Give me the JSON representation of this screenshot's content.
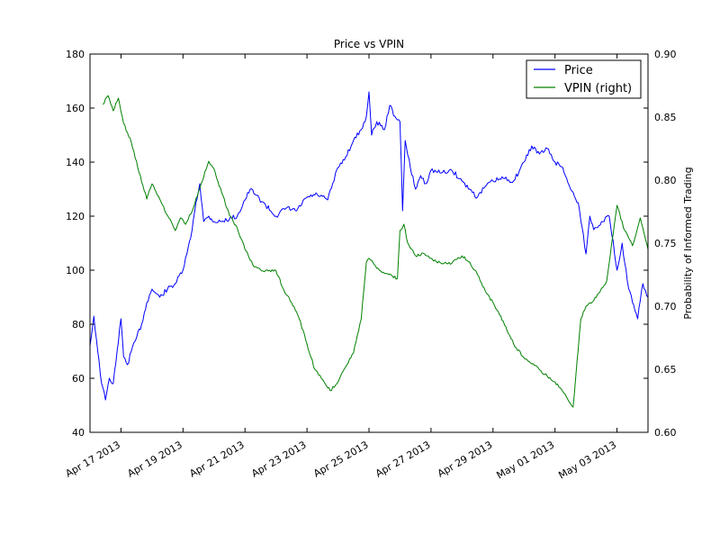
{
  "chart_data": {
    "type": "line",
    "title": "Price vs VPIN",
    "xlabel": "",
    "ylabel": "",
    "ylabel_right": "Probability of Informed Trading",
    "x_ticks": [
      "Apr 17 2013",
      "Apr 19 2013",
      "Apr 21 2013",
      "Apr 23 2013",
      "Apr 25 2013",
      "Apr 27 2013",
      "Apr 29 2013",
      "May 01 2013",
      "May 03 2013"
    ],
    "x_range": [
      "2013-04-16",
      "2013-05-04"
    ],
    "ylim_left": [
      40,
      180
    ],
    "yticks_left": [
      "40",
      "60",
      "80",
      "100",
      "120",
      "140",
      "160",
      "180"
    ],
    "ylim_right": [
      0.6,
      0.9
    ],
    "yticks_right": [
      "0.60",
      "0.65",
      "0.70",
      "0.75",
      "0.80",
      "0.85",
      "0.90"
    ],
    "grid": false,
    "legend_position": "top-right",
    "series": [
      {
        "name": "Price",
        "axis": "left",
        "color": "#0000ff",
        "points": [
          [
            "2013-04-16T00:00",
            72
          ],
          [
            "2013-04-16T03:00",
            83
          ],
          [
            "2013-04-16T06:00",
            70
          ],
          [
            "2013-04-16T09:00",
            58
          ],
          [
            "2013-04-16T12:00",
            52
          ],
          [
            "2013-04-16T15:00",
            60
          ],
          [
            "2013-04-16T18:00",
            58
          ],
          [
            "2013-04-16T21:00",
            70
          ],
          [
            "2013-04-17T00:00",
            82
          ],
          [
            "2013-04-17T02:00",
            68
          ],
          [
            "2013-04-17T05:00",
            65
          ],
          [
            "2013-04-17T08:00",
            70
          ],
          [
            "2013-04-17T12:00",
            75
          ],
          [
            "2013-04-17T16:00",
            80
          ],
          [
            "2013-04-17T20:00",
            88
          ],
          [
            "2013-04-18T00:00",
            93
          ],
          [
            "2013-04-18T06:00",
            90
          ],
          [
            "2013-04-18T12:00",
            93
          ],
          [
            "2013-04-18T18:00",
            95
          ],
          [
            "2013-04-19T00:00",
            100
          ],
          [
            "2013-04-19T06:00",
            112
          ],
          [
            "2013-04-19T10:00",
            125
          ],
          [
            "2013-04-19T13:00",
            132
          ],
          [
            "2013-04-19T16:00",
            118
          ],
          [
            "2013-04-19T20:00",
            120
          ],
          [
            "2013-04-20T00:00",
            118
          ],
          [
            "2013-04-20T06:00",
            118
          ],
          [
            "2013-04-20T12:00",
            119
          ],
          [
            "2013-04-20T18:00",
            120
          ],
          [
            "2013-04-21T00:00",
            126
          ],
          [
            "2013-04-21T04:00",
            130
          ],
          [
            "2013-04-21T08:00",
            128
          ],
          [
            "2013-04-21T16:00",
            124
          ],
          [
            "2013-04-22T00:00",
            120
          ],
          [
            "2013-04-22T08:00",
            123
          ],
          [
            "2013-04-22T16:00",
            122
          ],
          [
            "2013-04-23T00:00",
            127
          ],
          [
            "2013-04-23T08:00",
            128
          ],
          [
            "2013-04-23T16:00",
            126
          ],
          [
            "2013-04-24T00:00",
            138
          ],
          [
            "2013-04-24T06:00",
            142
          ],
          [
            "2013-04-24T12:00",
            148
          ],
          [
            "2013-04-24T18:00",
            152
          ],
          [
            "2013-04-24T22:00",
            157
          ],
          [
            "2013-04-25T00:00",
            166
          ],
          [
            "2013-04-25T02:00",
            150
          ],
          [
            "2013-04-25T06:00",
            155
          ],
          [
            "2013-04-25T12:00",
            152
          ],
          [
            "2013-04-25T16:00",
            161
          ],
          [
            "2013-04-25T20:00",
            157
          ],
          [
            "2013-04-26T00:00",
            155
          ],
          [
            "2013-04-26T02:00",
            122
          ],
          [
            "2013-04-26T04:00",
            148
          ],
          [
            "2013-04-26T08:00",
            138
          ],
          [
            "2013-04-26T12:00",
            130
          ],
          [
            "2013-04-26T16:00",
            135
          ],
          [
            "2013-04-26T20:00",
            132
          ],
          [
            "2013-04-27T00:00",
            137
          ],
          [
            "2013-04-27T08:00",
            136
          ],
          [
            "2013-04-27T16:00",
            137
          ],
          [
            "2013-04-28T00:00",
            133
          ],
          [
            "2013-04-28T06:00",
            130
          ],
          [
            "2013-04-28T12:00",
            127
          ],
          [
            "2013-04-28T18:00",
            131
          ],
          [
            "2013-04-29T00:00",
            133
          ],
          [
            "2013-04-29T08:00",
            134
          ],
          [
            "2013-04-29T16:00",
            133
          ],
          [
            "2013-04-30T00:00",
            140
          ],
          [
            "2013-04-30T06:00",
            146
          ],
          [
            "2013-04-30T12:00",
            143
          ],
          [
            "2013-04-30T18:00",
            145
          ],
          [
            "2013-05-01T00:00",
            140
          ],
          [
            "2013-05-01T06:00",
            138
          ],
          [
            "2013-05-01T12:00",
            130
          ],
          [
            "2013-05-01T18:00",
            125
          ],
          [
            "2013-05-02T00:00",
            106
          ],
          [
            "2013-05-02T03:00",
            120
          ],
          [
            "2013-05-02T06:00",
            115
          ],
          [
            "2013-05-02T12:00",
            118
          ],
          [
            "2013-05-02T18:00",
            120
          ],
          [
            "2013-05-03T00:00",
            100
          ],
          [
            "2013-05-03T04:00",
            110
          ],
          [
            "2013-05-03T08:00",
            96
          ],
          [
            "2013-05-03T12:00",
            88
          ],
          [
            "2013-05-03T16:00",
            82
          ],
          [
            "2013-05-03T20:00",
            95
          ],
          [
            "2013-05-04T00:00",
            90
          ]
        ]
      },
      {
        "name": "VPIN (right)",
        "axis": "right",
        "color": "#008000",
        "points": [
          [
            "2013-04-16T10:00",
            0.86
          ],
          [
            "2013-04-16T14:00",
            0.867
          ],
          [
            "2013-04-16T18:00",
            0.855
          ],
          [
            "2013-04-16T22:00",
            0.865
          ],
          [
            "2013-04-17T02:00",
            0.845
          ],
          [
            "2013-04-17T08:00",
            0.83
          ],
          [
            "2013-04-17T14:00",
            0.806
          ],
          [
            "2013-04-17T20:00",
            0.785
          ],
          [
            "2013-04-18T00:00",
            0.797
          ],
          [
            "2013-04-18T06:00",
            0.785
          ],
          [
            "2013-04-18T12:00",
            0.772
          ],
          [
            "2013-04-18T18:00",
            0.76
          ],
          [
            "2013-04-18T22:00",
            0.77
          ],
          [
            "2013-04-19T02:00",
            0.765
          ],
          [
            "2013-04-19T08:00",
            0.778
          ],
          [
            "2013-04-19T14:00",
            0.797
          ],
          [
            "2013-04-19T20:00",
            0.815
          ],
          [
            "2013-04-20T00:00",
            0.809
          ],
          [
            "2013-04-20T06:00",
            0.79
          ],
          [
            "2013-04-20T12:00",
            0.772
          ],
          [
            "2013-04-20T18:00",
            0.762
          ],
          [
            "2013-04-21T00:00",
            0.745
          ],
          [
            "2013-04-21T06:00",
            0.733
          ],
          [
            "2013-04-21T12:00",
            0.729
          ],
          [
            "2013-04-21T18:00",
            0.728
          ],
          [
            "2013-04-22T00:00",
            0.728
          ],
          [
            "2013-04-22T06:00",
            0.713
          ],
          [
            "2013-04-22T12:00",
            0.703
          ],
          [
            "2013-04-22T18:00",
            0.69
          ],
          [
            "2013-04-23T00:00",
            0.67
          ],
          [
            "2013-04-23T06:00",
            0.65
          ],
          [
            "2013-04-23T12:00",
            0.642
          ],
          [
            "2013-04-23T18:00",
            0.633
          ],
          [
            "2013-04-24T00:00",
            0.64
          ],
          [
            "2013-04-24T06:00",
            0.652
          ],
          [
            "2013-04-24T12:00",
            0.663
          ],
          [
            "2013-04-24T18:00",
            0.69
          ],
          [
            "2013-04-24T22:00",
            0.735
          ],
          [
            "2013-04-25T00:00",
            0.738
          ],
          [
            "2013-04-25T06:00",
            0.73
          ],
          [
            "2013-04-25T12:00",
            0.726
          ],
          [
            "2013-04-25T18:00",
            0.724
          ],
          [
            "2013-04-25T22:00",
            0.722
          ],
          [
            "2013-04-26T00:00",
            0.76
          ],
          [
            "2013-04-26T03:00",
            0.765
          ],
          [
            "2013-04-26T06:00",
            0.75
          ],
          [
            "2013-04-26T12:00",
            0.74
          ],
          [
            "2013-04-26T18:00",
            0.742
          ],
          [
            "2013-04-27T00:00",
            0.738
          ],
          [
            "2013-04-27T08:00",
            0.734
          ],
          [
            "2013-04-27T16:00",
            0.734
          ],
          [
            "2013-04-28T00:00",
            0.74
          ],
          [
            "2013-04-28T06:00",
            0.735
          ],
          [
            "2013-04-28T12:00",
            0.725
          ],
          [
            "2013-04-28T18:00",
            0.712
          ],
          [
            "2013-04-29T00:00",
            0.703
          ],
          [
            "2013-04-29T08:00",
            0.688
          ],
          [
            "2013-04-29T16:00",
            0.67
          ],
          [
            "2013-04-30T00:00",
            0.659
          ],
          [
            "2013-04-30T08:00",
            0.653
          ],
          [
            "2013-04-30T16:00",
            0.646
          ],
          [
            "2013-05-01T00:00",
            0.64
          ],
          [
            "2013-05-01T08:00",
            0.63
          ],
          [
            "2013-05-01T14:00",
            0.62
          ],
          [
            "2013-05-01T20:00",
            0.69
          ],
          [
            "2013-05-02T00:00",
            0.7
          ],
          [
            "2013-05-02T08:00",
            0.707
          ],
          [
            "2013-05-02T16:00",
            0.72
          ],
          [
            "2013-05-03T00:00",
            0.78
          ],
          [
            "2013-05-03T06:00",
            0.76
          ],
          [
            "2013-05-03T12:00",
            0.748
          ],
          [
            "2013-05-03T18:00",
            0.77
          ],
          [
            "2013-05-04T00:00",
            0.745
          ]
        ]
      }
    ]
  }
}
